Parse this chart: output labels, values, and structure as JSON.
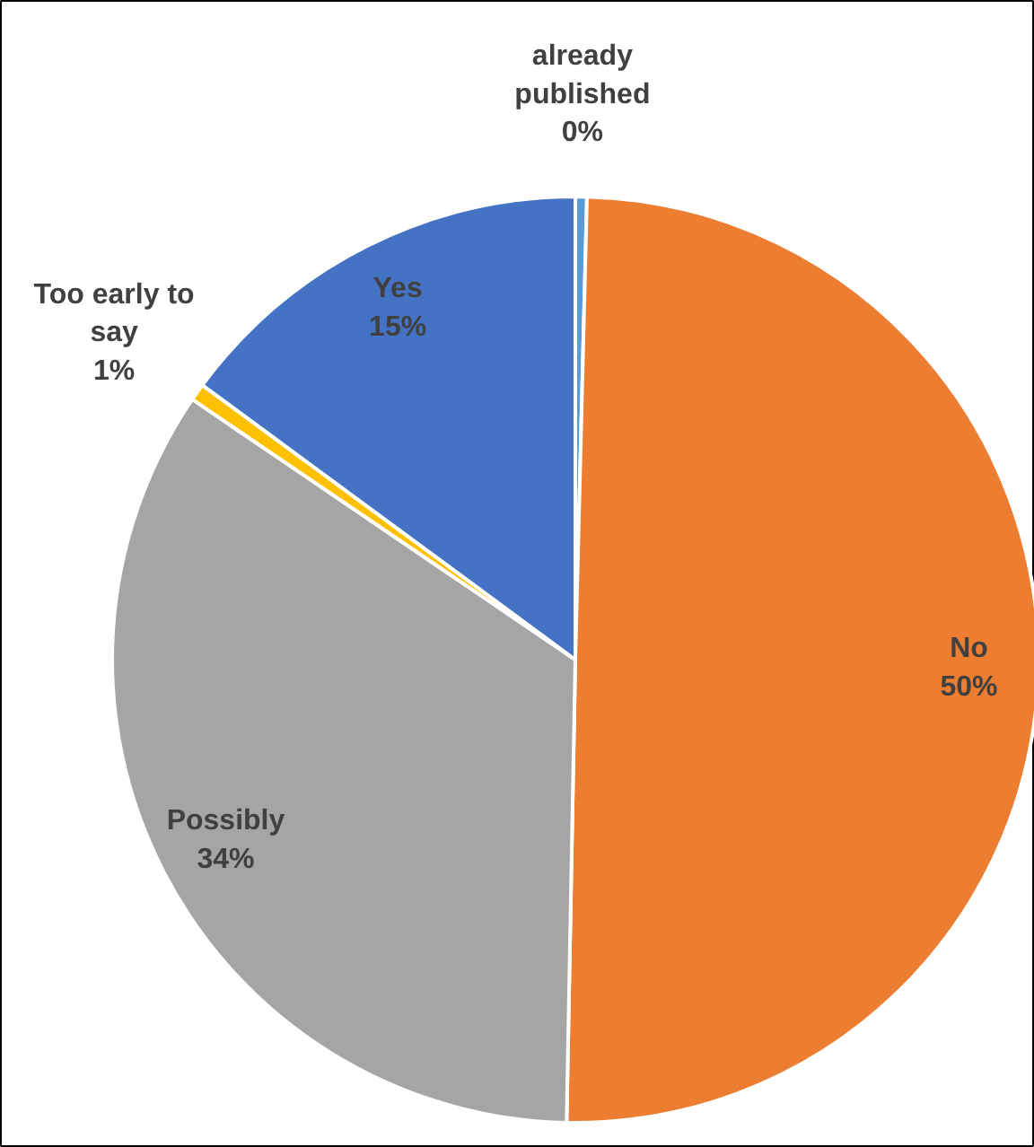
{
  "chart_data": {
    "type": "pie",
    "categories": [
      "already published",
      "No",
      "Possibly",
      "Too early to say",
      "Yes"
    ],
    "values": [
      0.4,
      49.9,
      34.2,
      0.6,
      14.9
    ],
    "value_labels": [
      "0%",
      "50%",
      "34%",
      "1%",
      "15%"
    ],
    "colors": [
      "#5b9bd5",
      "#ed7d31",
      "#a5a5a5",
      "#ffc000",
      "#4472c4"
    ]
  }
}
